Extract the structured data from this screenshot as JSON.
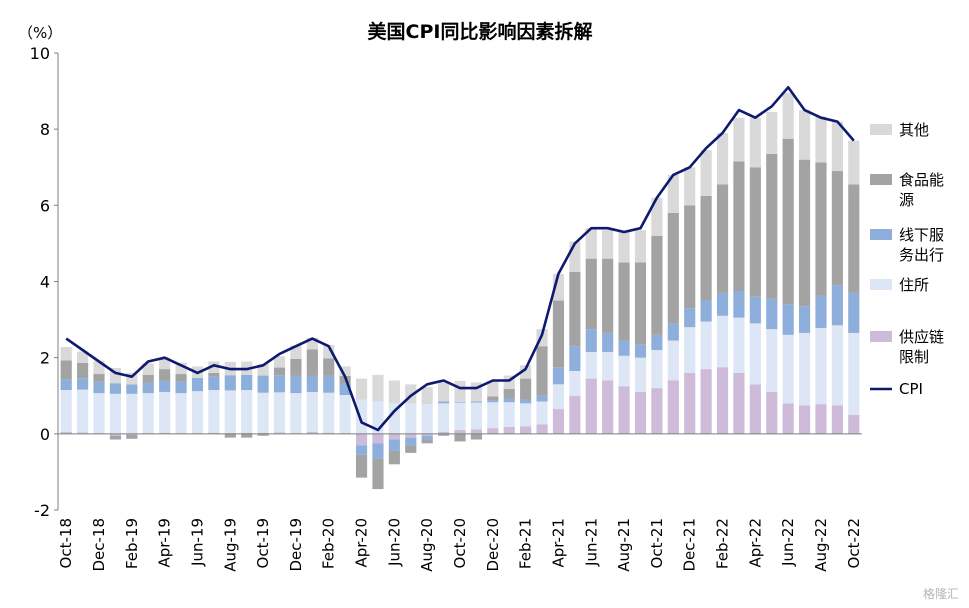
{
  "chart_data": {
    "type": "bar",
    "stacked": true,
    "title": "美国CPI同比影响因素拆解",
    "unit_label": "（%）",
    "ylim": [
      -2,
      10
    ],
    "yticks": [
      "10",
      "8",
      "6",
      "4",
      "2",
      "0",
      "-2"
    ],
    "ytick_values": [
      10,
      8,
      6,
      4,
      2,
      0,
      -2
    ],
    "grid": false,
    "legend_position": "right",
    "x": [
      "Oct-18",
      "Nov-18",
      "Dec-18",
      "Jan-19",
      "Feb-19",
      "Mar-19",
      "Apr-19",
      "May-19",
      "Jun-19",
      "Jul-19",
      "Aug-19",
      "Sep-19",
      "Oct-19",
      "Nov-19",
      "Dec-19",
      "Jan-20",
      "Feb-20",
      "Mar-20",
      "Apr-20",
      "May-20",
      "Jun-20",
      "Jul-20",
      "Aug-20",
      "Sep-20",
      "Oct-20",
      "Nov-20",
      "Dec-20",
      "Jan-21",
      "Feb-21",
      "Mar-21",
      "Apr-21",
      "May-21",
      "Jun-21",
      "Jul-21",
      "Aug-21",
      "Sep-21",
      "Oct-21",
      "Nov-21",
      "Dec-21",
      "Jan-22",
      "Feb-22",
      "Mar-22",
      "Apr-22",
      "May-22",
      "Jun-22",
      "Jul-22",
      "Aug-22",
      "Sep-22",
      "Oct-22"
    ],
    "xtick_labels": [
      "Oct-18",
      "Dec-18",
      "Feb-19",
      "Apr-19",
      "Jun-19",
      "Aug-19",
      "Oct-19",
      "Dec-19",
      "Feb-20",
      "Apr-20",
      "Jun-20",
      "Aug-20",
      "Oct-20",
      "Dec-20",
      "Feb-21",
      "Apr-21",
      "Jun-21",
      "Aug-21",
      "Oct-21",
      "Dec-21",
      "Feb-22",
      "Apr-22",
      "Jun-22",
      "Aug-22",
      "Oct-22"
    ],
    "series": [
      {
        "name": "供应链限制",
        "color": "#cdbbd9",
        "values": [
          0.05,
          0.04,
          0.02,
          -0.05,
          -0.03,
          0.02,
          0.03,
          0.02,
          0.02,
          0.03,
          0.02,
          0.03,
          0.03,
          0.04,
          0.02,
          0.05,
          0.03,
          0.02,
          -0.3,
          -0.25,
          -0.15,
          -0.1,
          -0.05,
          0.05,
          0.1,
          0.12,
          0.15,
          0.18,
          0.2,
          0.25,
          0.65,
          1.0,
          1.45,
          1.4,
          1.25,
          1.1,
          1.2,
          1.4,
          1.6,
          1.7,
          1.75,
          1.6,
          1.3,
          1.1,
          0.8,
          0.75,
          0.78,
          0.75,
          0.5
        ]
      },
      {
        "name": "住所",
        "color": "#dce6f4",
        "values": [
          1.1,
          1.12,
          1.05,
          1.05,
          1.05,
          1.05,
          1.07,
          1.05,
          1.1,
          1.12,
          1.12,
          1.12,
          1.05,
          1.05,
          1.05,
          1.05,
          1.05,
          1.0,
          0.9,
          0.85,
          0.8,
          0.8,
          0.78,
          0.75,
          0.72,
          0.7,
          0.68,
          0.65,
          0.6,
          0.6,
          0.65,
          0.65,
          0.7,
          0.75,
          0.8,
          0.9,
          1.0,
          1.05,
          1.2,
          1.25,
          1.35,
          1.45,
          1.6,
          1.65,
          1.8,
          1.9,
          2.0,
          2.1,
          2.15
        ]
      },
      {
        "name": "线下服务出行",
        "color": "#8eaedb",
        "values": [
          0.28,
          0.3,
          0.3,
          0.28,
          0.25,
          0.28,
          0.3,
          0.3,
          0.35,
          0.35,
          0.4,
          0.4,
          0.45,
          0.45,
          0.45,
          0.42,
          0.45,
          0.3,
          -0.25,
          -0.4,
          -0.3,
          -0.2,
          -0.1,
          0.05,
          0.02,
          0.03,
          0.05,
          0.1,
          0.1,
          0.15,
          0.45,
          0.65,
          0.6,
          0.5,
          0.4,
          0.35,
          0.4,
          0.45,
          0.5,
          0.55,
          0.6,
          0.7,
          0.7,
          0.8,
          0.8,
          0.7,
          0.85,
          1.05,
          1.05
        ]
      },
      {
        "name": "食品能源",
        "color": "#a3a3a3",
        "values": [
          0.5,
          0.4,
          0.2,
          -0.1,
          -0.1,
          0.2,
          0.3,
          0.2,
          0.0,
          0.1,
          -0.1,
          -0.1,
          -0.05,
          0.2,
          0.45,
          0.7,
          0.45,
          0.2,
          -0.6,
          -0.8,
          -0.35,
          -0.2,
          -0.1,
          -0.05,
          -0.2,
          -0.15,
          0.1,
          0.25,
          0.55,
          1.3,
          1.75,
          1.95,
          1.85,
          1.95,
          2.05,
          2.15,
          2.6,
          2.9,
          2.7,
          2.75,
          2.85,
          3.4,
          3.4,
          3.8,
          4.35,
          3.85,
          3.5,
          3.0,
          2.85
        ]
      },
      {
        "name": "其他",
        "color": "#d9d9d9",
        "values": [
          0.35,
          0.3,
          0.35,
          0.4,
          0.3,
          0.3,
          0.3,
          0.3,
          0.3,
          0.3,
          0.35,
          0.35,
          0.3,
          0.3,
          0.35,
          0.3,
          0.35,
          0.25,
          0.55,
          0.7,
          0.6,
          0.5,
          0.45,
          0.5,
          0.55,
          0.5,
          0.4,
          0.35,
          0.35,
          0.45,
          0.7,
          0.8,
          0.8,
          0.75,
          0.8,
          0.85,
          1.0,
          1.0,
          1.0,
          1.2,
          1.35,
          1.15,
          1.3,
          1.1,
          1.2,
          1.3,
          1.2,
          1.3,
          1.15
        ]
      },
      {
        "name": "CPI",
        "color": "#0d1a70",
        "type": "line",
        "values": [
          2.5,
          2.2,
          1.9,
          1.6,
          1.5,
          1.9,
          2.0,
          1.8,
          1.6,
          1.8,
          1.7,
          1.7,
          1.8,
          2.1,
          2.3,
          2.5,
          2.3,
          1.5,
          0.3,
          0.1,
          0.6,
          1.0,
          1.3,
          1.4,
          1.2,
          1.2,
          1.4,
          1.4,
          1.7,
          2.6,
          4.2,
          5.0,
          5.4,
          5.4,
          5.3,
          5.4,
          6.2,
          6.8,
          7.0,
          7.5,
          7.9,
          8.5,
          8.3,
          8.6,
          9.1,
          8.5,
          8.3,
          8.2,
          7.7
        ]
      }
    ],
    "legend": [
      {
        "key": "other",
        "label": [
          "其他"
        ],
        "color": "#d9d9d9",
        "kind": "box"
      },
      {
        "key": "food_energy",
        "label": [
          "食品能",
          "源"
        ],
        "color": "#a3a3a3",
        "kind": "box"
      },
      {
        "key": "services",
        "label": [
          "线下服",
          "务出行"
        ],
        "color": "#8eaedb",
        "kind": "box"
      },
      {
        "key": "shelter",
        "label": [
          "住所"
        ],
        "color": "#dce6f4",
        "kind": "box"
      },
      {
        "key": "supply",
        "label": [
          "供应链",
          "限制"
        ],
        "color": "#cdbbd9",
        "kind": "box"
      },
      {
        "key": "cpi",
        "label": [
          "CPI"
        ],
        "color": "#0d1a70",
        "kind": "line"
      }
    ]
  },
  "watermark": "格隆汇"
}
